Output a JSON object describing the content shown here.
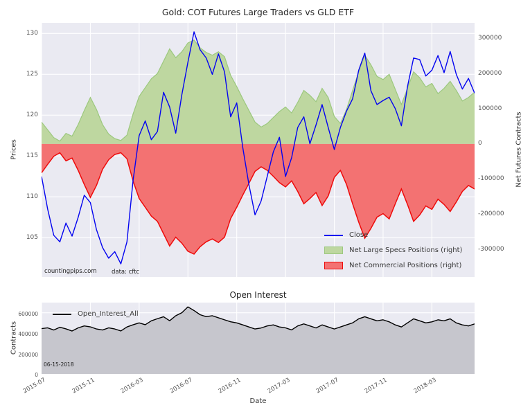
{
  "chart_data": [
    {
      "type": "line+area",
      "title": "Gold: COT Futures Large Traders vs GLD ETF",
      "x": {
        "unit": "months since 2015-07",
        "step": 0.5,
        "max": 35.5,
        "ticks": [
          0,
          4,
          8,
          12,
          16,
          20,
          24,
          28,
          32
        ],
        "tick_labels": [
          "2015-07",
          "2015-11",
          "2016-03",
          "2016-07",
          "2016-11",
          "2017-03",
          "2017-07",
          "2017-11",
          "2018-03"
        ]
      },
      "left_axis": {
        "label": "Prices",
        "ticks": [
          105,
          110,
          115,
          120,
          125,
          130
        ],
        "lim": [
          100.2,
          131.3
        ]
      },
      "right_axis": {
        "label": "Net Futures Contracts",
        "ticks": [
          300000,
          200000,
          100000,
          0,
          -100000,
          -200000,
          -300000
        ],
        "lim": [
          -378000,
          344000
        ]
      },
      "grid": true,
      "plot_bg": "#eaeaf2",
      "grid_color": "#ffffff",
      "series": [
        {
          "name": "Close",
          "axis": "left",
          "kind": "line",
          "color": "#0404f0",
          "values": [
            112.5,
            108.5,
            105.3,
            104.5,
            106.8,
            105.2,
            107.5,
            110.2,
            109.3,
            106.0,
            103.8,
            102.5,
            103.3,
            101.8,
            104.5,
            112.0,
            117.5,
            119.3,
            117.0,
            118.0,
            122.8,
            121.0,
            117.8,
            122.5,
            126.5,
            130.2,
            128.0,
            127.0,
            125.0,
            127.5,
            125.3,
            119.8,
            121.5,
            116.0,
            111.5,
            107.8,
            109.5,
            112.5,
            115.5,
            117.3,
            112.5,
            114.8,
            118.5,
            119.8,
            116.5,
            118.8,
            121.3,
            118.5,
            115.8,
            118.5,
            120.5,
            122.0,
            125.5,
            127.6,
            123.0,
            121.3,
            121.8,
            122.2,
            120.8,
            118.7,
            123.5,
            127.0,
            126.8,
            124.8,
            125.5,
            127.3,
            125.2,
            127.8,
            125.0,
            123.2,
            124.5,
            122.7
          ]
        },
        {
          "name": "Net Large Specs Positions (right)",
          "axis": "right",
          "kind": "area",
          "fill": "#bed7a0",
          "edge": "#9cc87e",
          "values": [
            62000,
            40000,
            18000,
            8000,
            30000,
            22000,
            55000,
            95000,
            132000,
            98000,
            55000,
            28000,
            15000,
            10000,
            25000,
            85000,
            135000,
            160000,
            185000,
            200000,
            235000,
            270000,
            245000,
            262000,
            287000,
            295000,
            273000,
            260000,
            252000,
            262000,
            248000,
            195000,
            163000,
            128000,
            95000,
            62000,
            48000,
            58000,
            75000,
            92000,
            105000,
            88000,
            118000,
            152000,
            138000,
            120000,
            158000,
            132000,
            78000,
            58000,
            98000,
            152000,
            205000,
            252000,
            225000,
            192000,
            183000,
            198000,
            155000,
            112000,
            158000,
            205000,
            188000,
            162000,
            172000,
            143000,
            158000,
            178000,
            152000,
            122000,
            132000,
            147000
          ]
        },
        {
          "name": "Net Commercial Positions (right)",
          "axis": "right",
          "kind": "area",
          "fill": "#f37272",
          "edge": "#ee0b0b",
          "values": [
            -82000,
            -58000,
            -35000,
            -25000,
            -48000,
            -40000,
            -75000,
            -115000,
            -152000,
            -118000,
            -72000,
            -45000,
            -30000,
            -25000,
            -42000,
            -105000,
            -155000,
            -180000,
            -205000,
            -220000,
            -255000,
            -290000,
            -265000,
            -282000,
            -305000,
            -313000,
            -292000,
            -278000,
            -270000,
            -280000,
            -265000,
            -212000,
            -180000,
            -145000,
            -112000,
            -78000,
            -65000,
            -75000,
            -92000,
            -110000,
            -122000,
            -105000,
            -135000,
            -170000,
            -155000,
            -138000,
            -175000,
            -148000,
            -95000,
            -75000,
            -115000,
            -170000,
            -222000,
            -268000,
            -240000,
            -208000,
            -198000,
            -213000,
            -170000,
            -128000,
            -172000,
            -220000,
            -202000,
            -176000,
            -186000,
            -157000,
            -172000,
            -192000,
            -165000,
            -135000,
            -118000,
            -128000
          ]
        }
      ],
      "legend": {
        "position": "lower right",
        "entries": [
          "Close",
          "Net Large Specs Positions (right)",
          "Net Commercial Positions (right)"
        ]
      },
      "annotations": {
        "watermark": "countingpips.com",
        "source": "data: cftc"
      }
    },
    {
      "type": "line+area",
      "title": "Open Interest",
      "xlabel": "Date",
      "ylabel": "Contracts",
      "yticks": [
        0,
        200000,
        400000,
        600000
      ],
      "ylim": [
        0,
        700000
      ],
      "grid": true,
      "plot_bg": "#eaeaf2",
      "grid_color": "#ffffff",
      "series": [
        {
          "name": "Open_Interest_All",
          "kind": "area",
          "color": "#000000",
          "fill": "#c6c6cd",
          "values": [
            445000,
            452000,
            431000,
            458000,
            442000,
            421000,
            452000,
            471000,
            462000,
            441000,
            431000,
            452000,
            441000,
            422000,
            461000,
            482000,
            501000,
            483000,
            521000,
            542000,
            561000,
            522000,
            571000,
            601000,
            658000,
            622000,
            581000,
            562000,
            571000,
            551000,
            531000,
            512000,
            501000,
            481000,
            461000,
            441000,
            451000,
            471000,
            481000,
            461000,
            452000,
            432000,
            471000,
            491000,
            471000,
            451000,
            481000,
            461000,
            441000,
            461000,
            481000,
            501000,
            541000,
            561000,
            541000,
            521000,
            531000,
            511000,
            481000,
            461000,
            501000,
            541000,
            521000,
            501000,
            511000,
            531000,
            521000,
            541000,
            501000,
            481000,
            471000,
            491000
          ]
        }
      ],
      "legend": {
        "position": "upper left",
        "entries": [
          "Open_Interest_All"
        ]
      },
      "annotation_date": "06-15-2018"
    }
  ]
}
